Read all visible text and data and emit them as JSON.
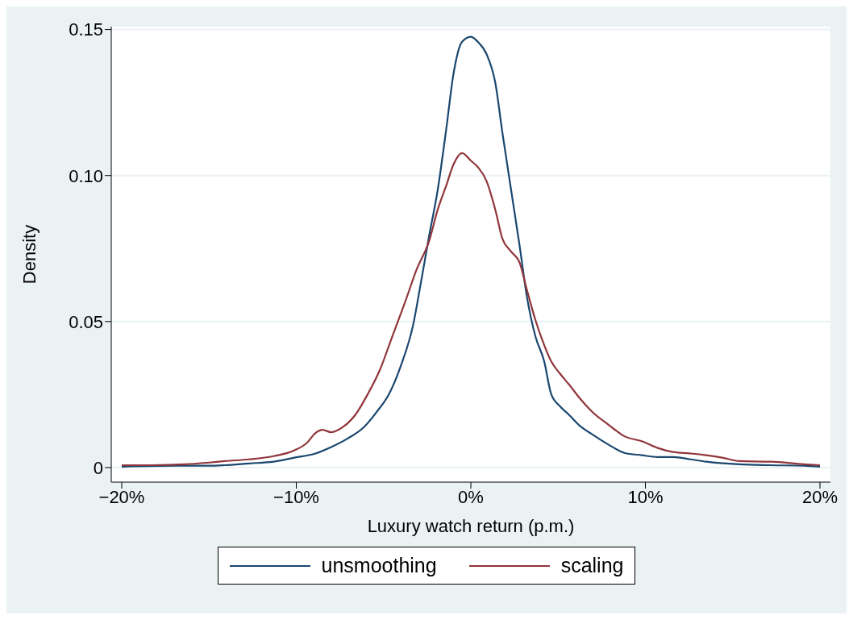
{
  "chart_data": {
    "type": "line",
    "xlabel": "Luxury watch return (p.m.)",
    "ylabel": "Density",
    "xlim": [
      -20.6,
      20.6
    ],
    "xticks": [
      {
        "value": -20,
        "label": "−20%"
      },
      {
        "value": -10,
        "label": "−10%"
      },
      {
        "value": 0,
        "label": "0%"
      },
      {
        "value": 10,
        "label": "10%"
      },
      {
        "value": 20,
        "label": "20%"
      }
    ],
    "ylim": [
      -0.005,
      0.151
    ],
    "yticks": [
      0,
      {
        "value": 0.05,
        "label": "0.05"
      },
      {
        "value": 0.1,
        "label": "0.10"
      },
      {
        "value": 0.15,
        "label": "0.15"
      }
    ],
    "grid": "y",
    "legend": "bottom",
    "marker": "none",
    "line_style": "solid",
    "series": [
      {
        "name": "unsmoothing",
        "color": "#1a476f",
        "x": [
          -20,
          -16.9,
          -15,
          -14.1,
          -12.7,
          -11.3,
          -10.1,
          -8.9,
          -8,
          -7.1,
          -6.1,
          -5.4,
          -4.7,
          -4,
          -3.3,
          -2.9,
          -2.4,
          -1.9,
          -1.4,
          -1,
          -0.5,
          0,
          0.4,
          0.9,
          1.4,
          1.8,
          2.3,
          2.8,
          3.2,
          3.7,
          4.2,
          4.6,
          5.1,
          5.6,
          6.3,
          7,
          7.9,
          8.8,
          9.8,
          10.7,
          11.6,
          12.6,
          13.5,
          15.4,
          17.2,
          19.1,
          20
        ],
        "values": [
          0.0003,
          0.0006,
          0.0006,
          0.0008,
          0.0014,
          0.002,
          0.0034,
          0.0048,
          0.007,
          0.0098,
          0.014,
          0.019,
          0.025,
          0.035,
          0.049,
          0.062,
          0.079,
          0.095,
          0.1163,
          0.1346,
          0.1458,
          0.1475,
          0.1458,
          0.1416,
          0.1318,
          0.115,
          0.0953,
          0.0757,
          0.0589,
          0.0449,
          0.0364,
          0.0252,
          0.021,
          0.0182,
          0.014,
          0.0112,
          0.0078,
          0.005,
          0.0042,
          0.0036,
          0.0036,
          0.0028,
          0.002,
          0.0011,
          0.0008,
          0.0006,
          0.0003
        ]
      },
      {
        "name": "scaling",
        "color": "#90353b",
        "x": [
          -20,
          -18.3,
          -16.4,
          -15,
          -14.1,
          -12.7,
          -11.3,
          -10.1,
          -9.4,
          -8.9,
          -8.5,
          -8,
          -7.3,
          -6.6,
          -5.9,
          -5.2,
          -4.5,
          -3.8,
          -3.1,
          -2.4,
          -1.9,
          -1.4,
          -1,
          -0.5,
          0,
          0.4,
          0.9,
          1.4,
          1.8,
          2.3,
          2.8,
          3.2,
          3.7,
          4.2,
          4.6,
          5.1,
          5.6,
          6.3,
          7,
          7.9,
          8.8,
          9.8,
          10.7,
          11.6,
          12.6,
          13.5,
          14.4,
          15.4,
          17.2,
          19.1,
          20
        ],
        "values": [
          0.0008,
          0.0008,
          0.0011,
          0.0017,
          0.0022,
          0.0028,
          0.0039,
          0.0059,
          0.0084,
          0.0118,
          0.0129,
          0.0121,
          0.014,
          0.0182,
          0.0252,
          0.0336,
          0.0449,
          0.0561,
          0.0679,
          0.0774,
          0.0883,
          0.0967,
          0.1037,
          0.1077,
          0.1051,
          0.1029,
          0.0981,
          0.0883,
          0.0785,
          0.074,
          0.0701,
          0.0611,
          0.0505,
          0.042,
          0.0364,
          0.0322,
          0.0286,
          0.0233,
          0.0188,
          0.0146,
          0.0107,
          0.009,
          0.0067,
          0.0053,
          0.0048,
          0.0042,
          0.0034,
          0.0022,
          0.002,
          0.0011,
          0.0008
        ]
      }
    ]
  }
}
